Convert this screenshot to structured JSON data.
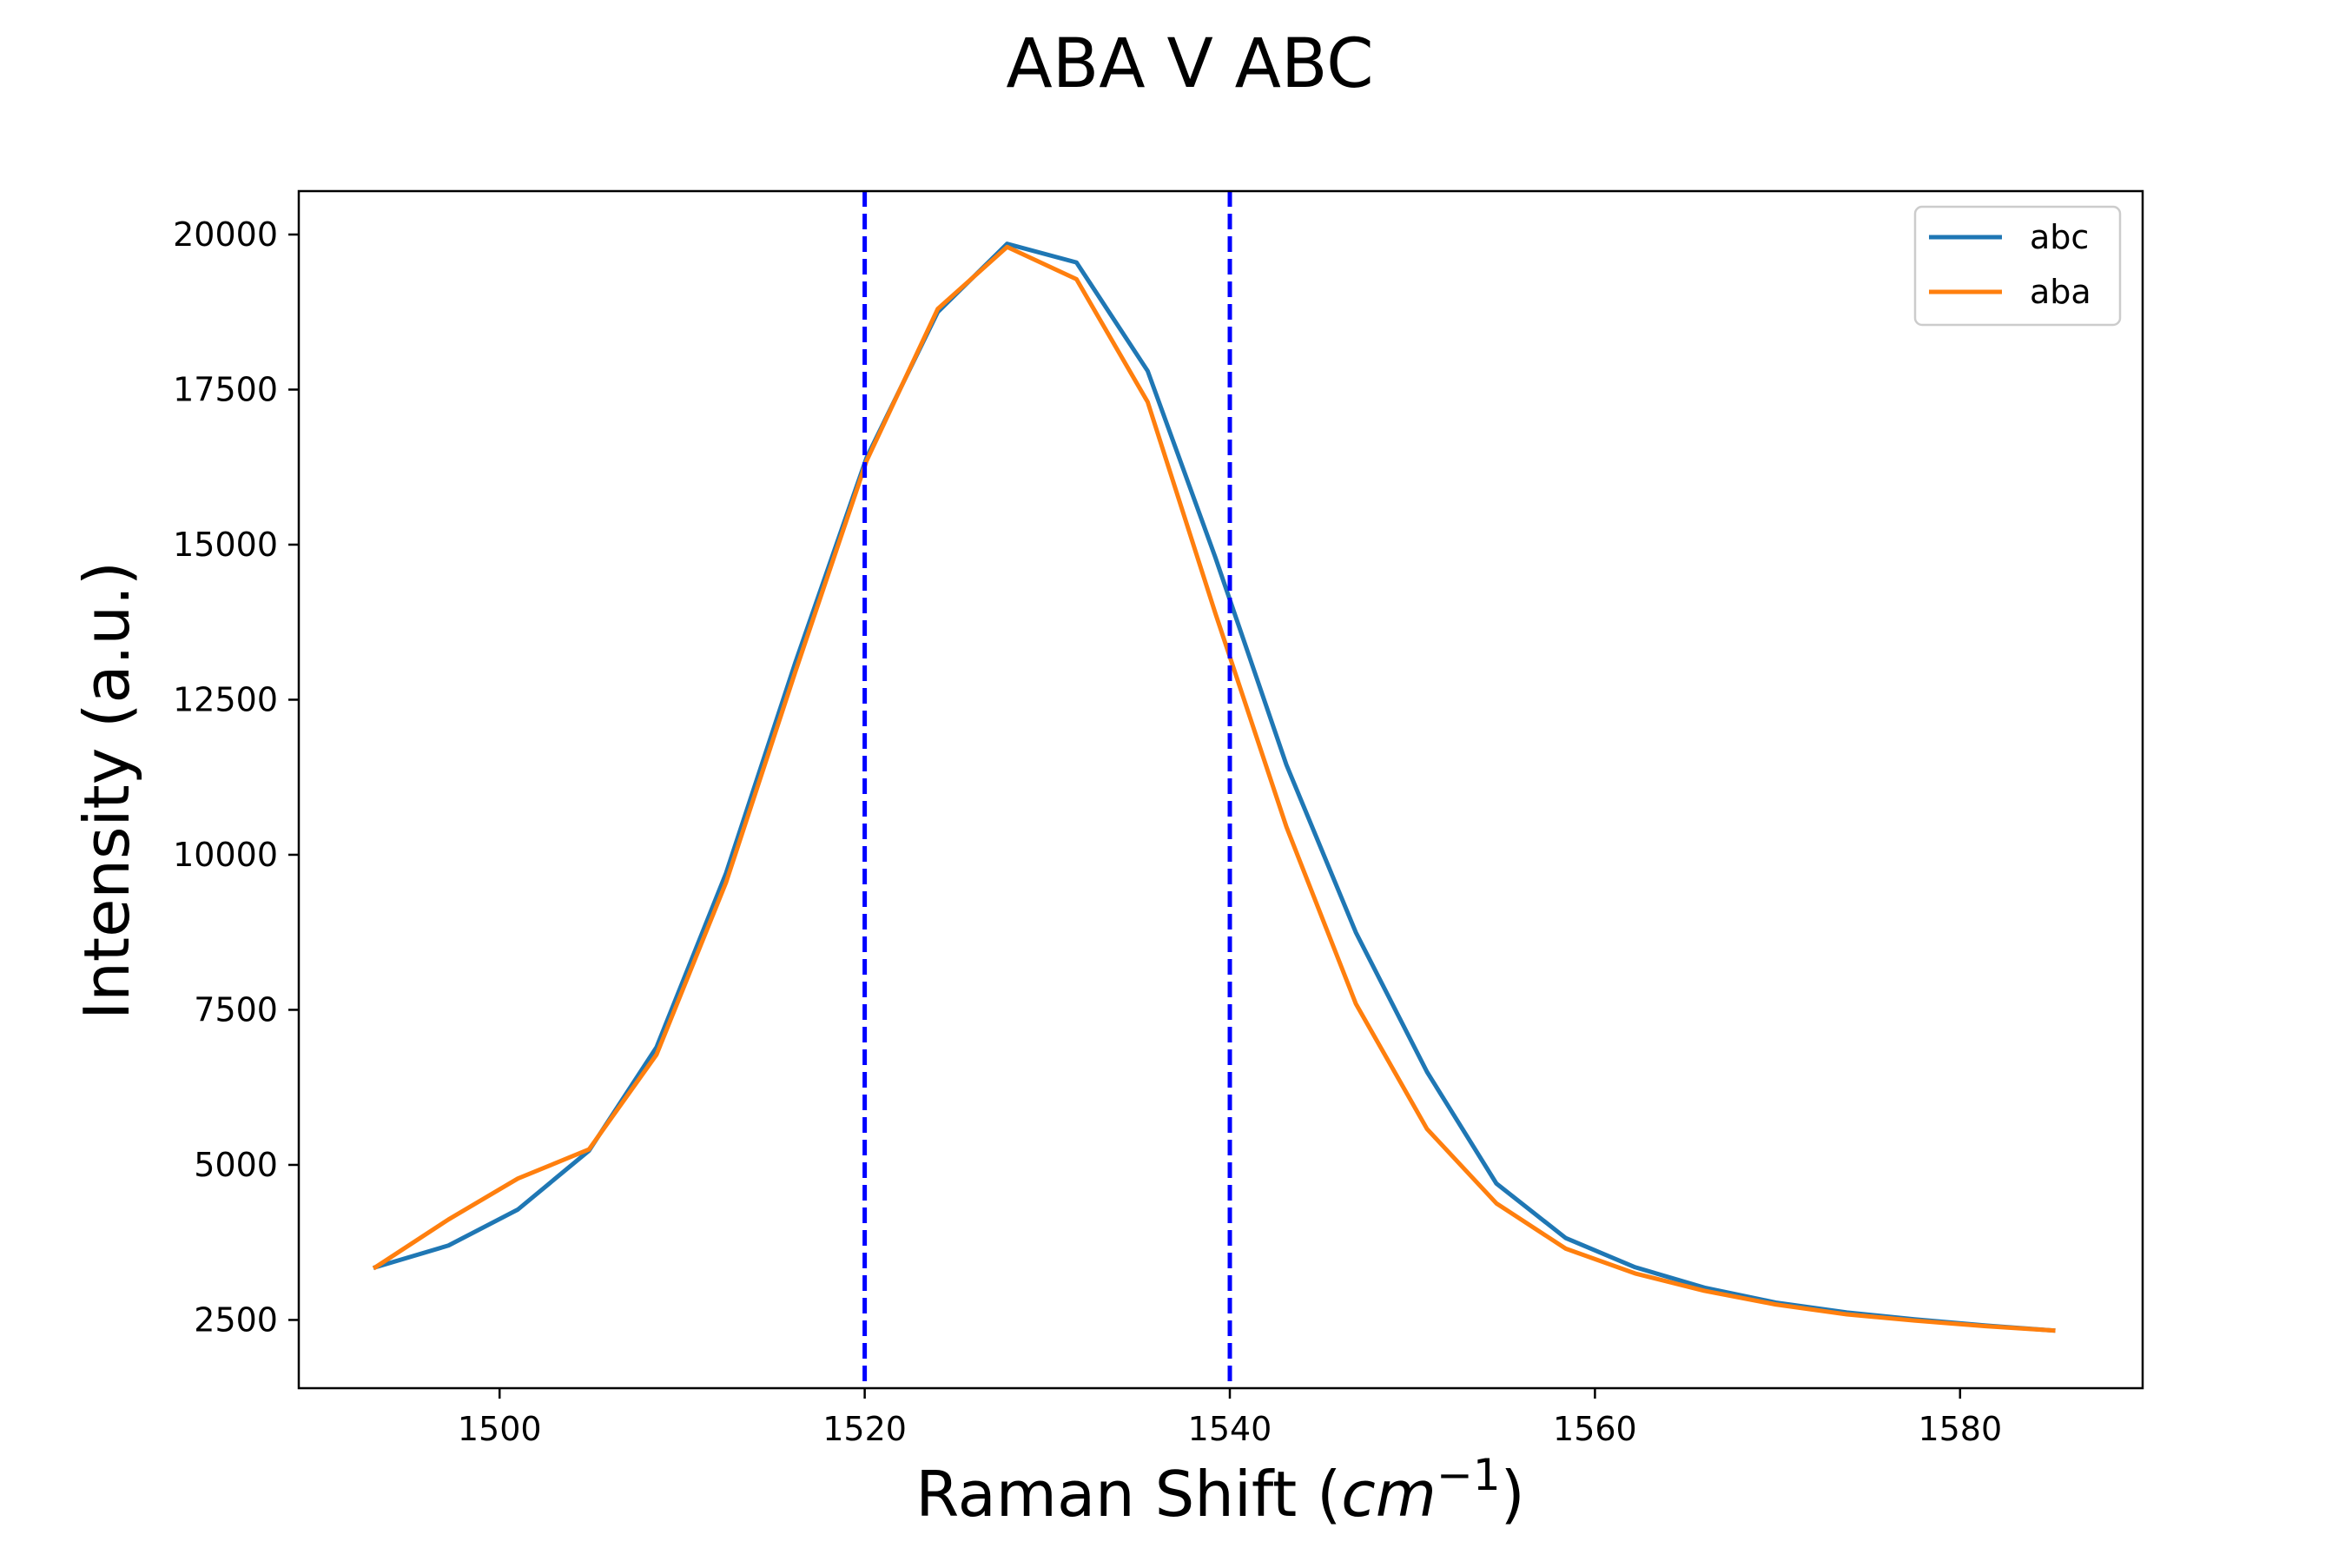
{
  "chart_data": {
    "type": "line",
    "title": "ABA V ABC",
    "xlabel": {
      "prefix": "Raman Shift (",
      "math": "cm",
      "superscript": "−1",
      "suffix": ")"
    },
    "ylabel": "Intensity (a.u.)",
    "xlim": [
      1489,
      1590
    ],
    "ylim": [
      1400,
      20700
    ],
    "x_ticks": [
      1500,
      1520,
      1540,
      1560,
      1580
    ],
    "y_ticks": [
      2500,
      5000,
      7500,
      10000,
      12500,
      15000,
      17500,
      20000
    ],
    "grid": false,
    "legend_position": "top-right",
    "x": [
      1493.2,
      1497.2,
      1501.0,
      1504.9,
      1508.6,
      1512.4,
      1516.2,
      1520.1,
      1524.0,
      1527.8,
      1531.6,
      1535.5,
      1539.2,
      1543.1,
      1546.9,
      1550.8,
      1554.6,
      1558.4,
      1562.2,
      1566.0,
      1569.9,
      1573.8,
      1577.5,
      1581.4,
      1585.1
    ],
    "series": [
      {
        "name": "abc",
        "color": "#1f77b4",
        "values": [
          3350,
          3700,
          4280,
          5230,
          6900,
          9700,
          13100,
          16400,
          18750,
          19850,
          19550,
          17800,
          14800,
          11450,
          8750,
          6500,
          4700,
          3820,
          3350,
          3020,
          2780,
          2620,
          2510,
          2410,
          2330
        ]
      },
      {
        "name": "aba",
        "color": "#ff7f0e",
        "values": [
          3350,
          4120,
          4780,
          5250,
          6780,
          9550,
          12950,
          16350,
          18800,
          19800,
          19280,
          17300,
          13900,
          10450,
          7600,
          5580,
          4380,
          3650,
          3250,
          2970,
          2750,
          2590,
          2490,
          2400,
          2330
        ]
      }
    ],
    "vertical_lines": [
      {
        "x": 1520,
        "color": "#0000ff",
        "style": "dashed"
      },
      {
        "x": 1540,
        "color": "#0000ff",
        "style": "dashed"
      }
    ]
  }
}
